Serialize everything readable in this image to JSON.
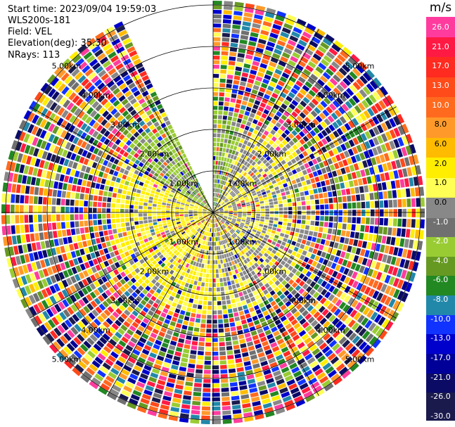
{
  "header": {
    "start_time": "Start time: 2023/09/04 19:59:03",
    "instrument": "WLS200s-181",
    "field": "Field: VEL",
    "elevation": "Elevation(deg): 35.30",
    "nrays": "NRays: 113"
  },
  "chart_data": {
    "type": "polar-ppi",
    "field": "VEL",
    "units": "m/s",
    "range_rings_km": [
      1,
      2,
      3,
      4,
      5
    ],
    "ring_labels": [
      "1.00km",
      "2.00km",
      "3.00km",
      "4.00km",
      "5.00km"
    ],
    "max_range_km": 5.1,
    "missing_sector_deg": [
      -25,
      0
    ],
    "colorbar": {
      "ticks": [
        "26.0",
        "21.0",
        "17.0",
        "13.0",
        "10.0",
        "8.0",
        "6.0",
        "2.0",
        "1.0",
        "0.0",
        "-1.0",
        "-2.0",
        "-4.0",
        "-6.0",
        "-8.0",
        "-10.0",
        "-13.0",
        "-17.0",
        "-21.0",
        "-26.0",
        "-30.0"
      ],
      "colors": [
        "#ff3c9e",
        "#ff1a44",
        "#ff2a20",
        "#ff4a1a",
        "#ff6a1e",
        "#ff9a2a",
        "#ffbb00",
        "#ffee00",
        "#ffff55",
        "#888888",
        "#707070",
        "#99cc33",
        "#669922",
        "#228822",
        "#2288aa",
        "#1133ff",
        "#0000cc",
        "#000099",
        "#0b0b66",
        "#1a1a4d"
      ]
    }
  }
}
